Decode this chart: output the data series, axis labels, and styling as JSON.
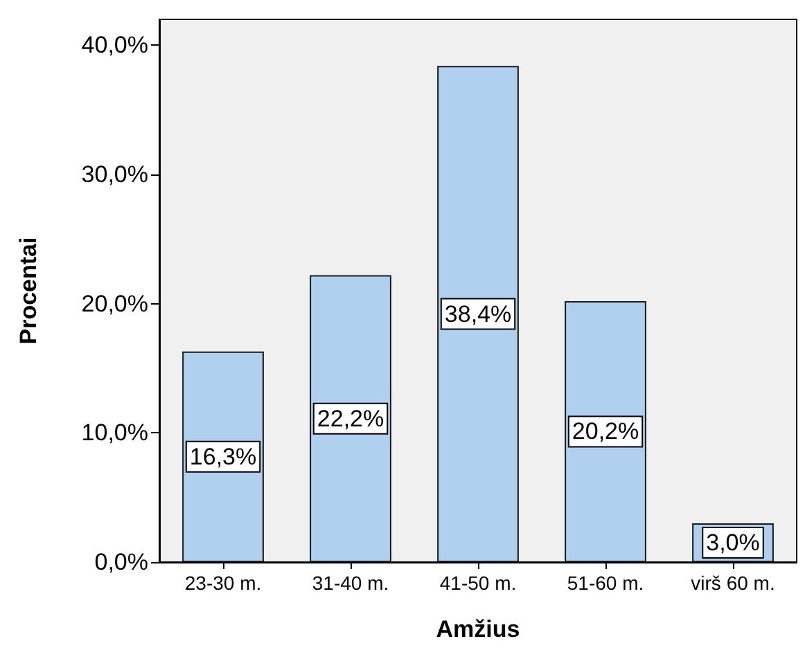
{
  "chart_data": {
    "type": "bar",
    "xlabel": "Amžius",
    "ylabel": "Procentai",
    "categories": [
      "23-30 m.",
      "31-40 m.",
      "41-50 m.",
      "51-60 m.",
      "virš 60 m."
    ],
    "values": [
      16.3,
      22.2,
      38.4,
      20.2,
      3.0
    ],
    "value_labels": [
      "16,3%",
      "22,2%",
      "38,4%",
      "20,2%",
      "3,0%"
    ],
    "color": "#afd0ee",
    "ylim": [
      0,
      42
    ],
    "yticks": [
      {
        "value": 0,
        "label": "0,0%"
      },
      {
        "value": 10,
        "label": "10,0%"
      },
      {
        "value": 20,
        "label": "20,0%"
      },
      {
        "value": 30,
        "label": "30,0%"
      },
      {
        "value": 40,
        "label": "40,0%"
      }
    ],
    "grid": false
  }
}
